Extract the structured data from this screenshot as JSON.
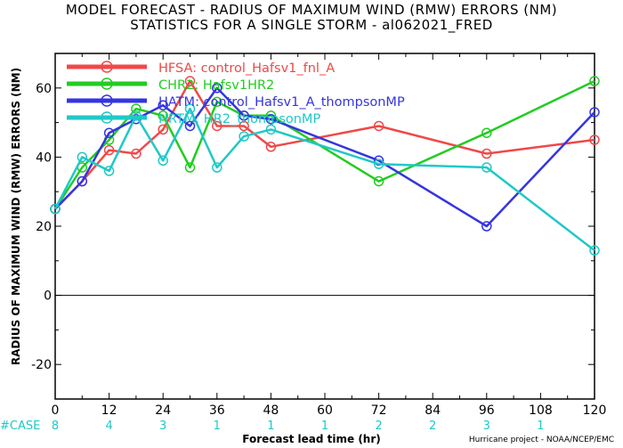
{
  "chart_data": {
    "type": "line",
    "title": "MODEL FORECAST - RADIUS OF MAXIMUM WIND (RMW) ERRORS (NM)",
    "subtitle": "STATISTICS FOR A SINGLE STORM - al062021_FRED",
    "xlabel": "Forecast lead time (hr)",
    "ylabel": "RADIUS OF MAXIMUM WIND (RMW) ERRORS (NM)",
    "xlim": [
      0,
      120
    ],
    "ylim": [
      -30,
      70
    ],
    "xticks": [
      0,
      12,
      24,
      36,
      48,
      60,
      72,
      84,
      96,
      108,
      120
    ],
    "yticks": [
      -20,
      0,
      20,
      40,
      60
    ],
    "zero_line": true,
    "legend_position": "top-left",
    "series": [
      {
        "name": "HFSA: control_Hafsv1_fnl_A",
        "color": "#f04848",
        "x": [
          0,
          6,
          12,
          18,
          24,
          30,
          36,
          42,
          48,
          72,
          96,
          120
        ],
        "y": [
          25,
          33,
          42,
          41,
          48,
          62,
          49,
          49,
          43,
          49,
          41,
          45
        ]
      },
      {
        "name": "CHR2: Hafsv1HR2",
        "color": "#22cc22",
        "x": [
          0,
          6,
          12,
          18,
          24,
          30,
          36,
          42,
          48,
          72,
          96,
          120
        ],
        "y": [
          25,
          37,
          45,
          54,
          52,
          37,
          56,
          52,
          52,
          33,
          47,
          62
        ]
      },
      {
        "name": "HATM: control_Hafsv1_A_thompsonMP",
        "color": "#3535e0",
        "x": [
          0,
          6,
          12,
          18,
          24,
          30,
          36,
          42,
          48,
          72,
          96,
          120
        ],
        "y": [
          25,
          33,
          47,
          51,
          55,
          49,
          60,
          52,
          51,
          39,
          20,
          53
        ]
      },
      {
        "name": "HRTM: HR2_thompsonMP",
        "color": "#20c8c8",
        "x": [
          0,
          6,
          12,
          18,
          24,
          30,
          36,
          42,
          48,
          72,
          96,
          120
        ],
        "y": [
          25,
          40,
          36,
          52,
          39,
          54,
          37,
          46,
          48,
          38,
          37,
          13
        ]
      }
    ],
    "case_label": "#CASE",
    "case_counts": [
      {
        "x": 0,
        "n": "8"
      },
      {
        "x": 12,
        "n": "4"
      },
      {
        "x": 24,
        "n": "3"
      },
      {
        "x": 36,
        "n": "1"
      },
      {
        "x": 48,
        "n": "1"
      },
      {
        "x": 60,
        "n": "1"
      },
      {
        "x": 72,
        "n": "2"
      },
      {
        "x": 84,
        "n": "2"
      },
      {
        "x": 96,
        "n": "3"
      },
      {
        "x": 108,
        "n": "1"
      }
    ],
    "case_color": "#20c8c8"
  },
  "credit": "Hurricane project - NOAA/NCEP/EMC"
}
